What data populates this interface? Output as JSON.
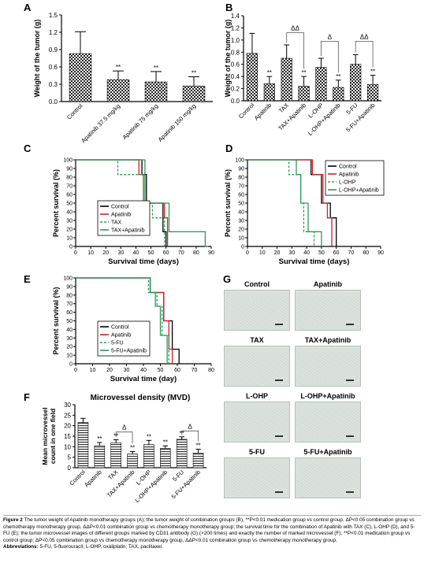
{
  "panels": {
    "A": {
      "letter": "A",
      "ylabel": "Weight of the tumor (g)",
      "yticks": [
        "0.0",
        "0.3",
        "0.6",
        "0.9",
        "1.2",
        "1.5"
      ],
      "categories": [
        "Control",
        "Apatinib 37.5 mg/kg",
        "Apatinib 75 mg/kg",
        "Apatinib 150 mg/kg"
      ],
      "annotations": [
        "",
        "**",
        "**",
        "**"
      ]
    },
    "B": {
      "letter": "B",
      "ylabel": "Weight of the tumor (g)",
      "yticks": [
        "0.0",
        "0.2",
        "0.4",
        "0.6",
        "0.8",
        "1.0",
        "1.2",
        "1.4"
      ],
      "categories": [
        "Control",
        "Apatinib",
        "TAX",
        "TAX+Apatinib",
        "L-OHP",
        "L-OHP+Apatinib",
        "5-FU",
        "5-FU+Apatinib"
      ],
      "annotations": [
        "",
        "**",
        "",
        "**",
        "",
        "**",
        "",
        "**"
      ],
      "brackets": [
        "ΔΔ",
        "Δ",
        "ΔΔ"
      ]
    },
    "C": {
      "letter": "C",
      "ylabel": "Percent survival (%)",
      "xlabel": "Survival time (days)",
      "yticks": [
        "0",
        "10",
        "20",
        "30",
        "40",
        "50",
        "60",
        "70",
        "80",
        "90",
        "100"
      ],
      "xticks": [
        "0",
        "10",
        "20",
        "30",
        "40",
        "50",
        "60",
        "70",
        "80",
        "90"
      ],
      "legend": [
        "Control",
        "Apatinib",
        "TAX",
        "TAX+Apatinib"
      ]
    },
    "D": {
      "letter": "D",
      "ylabel": "Percent survival (%)",
      "xlabel": "Survival time (days)",
      "yticks": [
        "0",
        "10",
        "20",
        "30",
        "40",
        "50",
        "60",
        "70",
        "80",
        "90",
        "100"
      ],
      "xticks": [
        "0",
        "10",
        "20",
        "30",
        "40",
        "50",
        "60",
        "70",
        "80",
        "90"
      ],
      "legend": [
        "Control",
        "Apatinib",
        "L-OHP",
        "L-OHP+Apatinib"
      ]
    },
    "E": {
      "letter": "E",
      "ylabel": "Percent survival (%)",
      "xlabel": "Survival time (day)",
      "yticks": [
        "0",
        "10",
        "20",
        "30",
        "40",
        "50",
        "60",
        "70",
        "80",
        "90",
        "100"
      ],
      "xticks": [
        "0",
        "10",
        "20",
        "30",
        "40",
        "50",
        "60",
        "70",
        "80"
      ],
      "legend": [
        "Control",
        "Apatinib",
        "5-FU",
        "5-FU+Apatinib"
      ]
    },
    "F": {
      "letter": "F",
      "title": "Microvessel density (MVD)",
      "ylabel": "Mean microvessel count in one field",
      "yticks": [
        "0",
        "5",
        "10",
        "15",
        "20",
        "25",
        "30"
      ],
      "categories": [
        "Control",
        "Apatinib",
        "TAX",
        "TAX+Apatinib",
        "L-OHP",
        "L-OHP+Apatinib",
        "5-FU",
        "5-FU+Apatinib"
      ],
      "annotations": [
        "",
        "**",
        "**",
        "**",
        "**",
        "**",
        "**",
        "**"
      ],
      "brackets": [
        "Δ",
        "Δ"
      ]
    },
    "G": {
      "letter": "G",
      "titles": [
        "Control",
        "Apatinib",
        "TAX",
        "TAX+Apatinib",
        "L-OHP",
        "L-OHP+Apatinib",
        "5-FU",
        "5-FU+Apatinib"
      ]
    }
  },
  "colors": {
    "control": "#000000",
    "apatinib": "#d0202a",
    "chemo": "#2e9a5a",
    "combo": "#2e9a5a",
    "bar_pattern": "#333333"
  },
  "chart_data": [
    {
      "type": "bar",
      "id": "A",
      "categories": [
        "Control",
        "Apatinib 37.5 mg/kg",
        "Apatinib 75 mg/kg",
        "Apatinib 150 mg/kg"
      ],
      "values": [
        0.83,
        0.38,
        0.34,
        0.27
      ],
      "errors": [
        0.38,
        0.15,
        0.18,
        0.16
      ],
      "ylim": [
        0,
        1.5
      ],
      "ylabel": "Weight of the tumor (g)"
    },
    {
      "type": "bar",
      "id": "B",
      "categories": [
        "Control",
        "Apatinib",
        "TAX",
        "TAX+Apatinib",
        "L-OHP",
        "L-OHP+Apatinib",
        "5-FU",
        "5-FU+Apatinib"
      ],
      "values": [
        0.78,
        0.28,
        0.7,
        0.24,
        0.55,
        0.22,
        0.6,
        0.27
      ],
      "errors": [
        0.33,
        0.12,
        0.22,
        0.16,
        0.15,
        0.12,
        0.16,
        0.15
      ],
      "ylim": [
        0,
        1.4
      ],
      "ylabel": "Weight of the tumor (g)"
    },
    {
      "type": "line",
      "id": "C",
      "xlim": [
        0,
        90
      ],
      "ylim": [
        0,
        100
      ],
      "xlabel": "Survival time (days)",
      "ylabel": "Percent survival (%)",
      "series": [
        {
          "name": "Control",
          "style": "solid",
          "color": "#000000",
          "points": [
            [
              0,
              100
            ],
            [
              44,
              100
            ],
            [
              44,
              83
            ],
            [
              47,
              83
            ],
            [
              47,
              50
            ],
            [
              58,
              50
            ],
            [
              58,
              17
            ],
            [
              60,
              17
            ],
            [
              60,
              0
            ]
          ]
        },
        {
          "name": "Apatinib",
          "style": "solid",
          "color": "#d0202a",
          "points": [
            [
              0,
              100
            ],
            [
              42,
              100
            ],
            [
              42,
              83
            ],
            [
              45,
              83
            ],
            [
              45,
              50
            ],
            [
              59,
              50
            ],
            [
              59,
              33
            ],
            [
              61,
              33
            ],
            [
              61,
              0
            ]
          ]
        },
        {
          "name": "TAX",
          "style": "dashed",
          "color": "#2e9a5a",
          "points": [
            [
              0,
              100
            ],
            [
              28,
              100
            ],
            [
              28,
              83
            ],
            [
              45,
              83
            ],
            [
              45,
              50
            ],
            [
              51,
              50
            ],
            [
              51,
              33
            ],
            [
              59,
              33
            ],
            [
              59,
              0
            ]
          ]
        },
        {
          "name": "TAX+Apatinib",
          "style": "solid",
          "color": "#2e9a5a",
          "points": [
            [
              0,
              100
            ],
            [
              46,
              100
            ],
            [
              46,
              50
            ],
            [
              62,
              50
            ],
            [
              62,
              17
            ],
            [
              86,
              17
            ],
            [
              86,
              0
            ],
            [
              88,
              0
            ]
          ]
        }
      ]
    },
    {
      "type": "line",
      "id": "D",
      "xlim": [
        0,
        90
      ],
      "ylim": [
        0,
        100
      ],
      "xlabel": "Survival time (days)",
      "ylabel": "Percent survival (%)",
      "series": [
        {
          "name": "Control",
          "style": "solid",
          "color": "#000000",
          "points": [
            [
              0,
              100
            ],
            [
              43,
              100
            ],
            [
              43,
              83
            ],
            [
              50,
              83
            ],
            [
              50,
              50
            ],
            [
              56,
              50
            ],
            [
              56,
              33
            ],
            [
              60,
              33
            ],
            [
              60,
              0
            ]
          ]
        },
        {
          "name": "Apatinib",
          "style": "solid",
          "color": "#d0202a",
          "points": [
            [
              0,
              100
            ],
            [
              44,
              100
            ],
            [
              44,
              83
            ],
            [
              51,
              83
            ],
            [
              51,
              50
            ],
            [
              54,
              50
            ],
            [
              54,
              33
            ],
            [
              57,
              33
            ],
            [
              57,
              0
            ]
          ]
        },
        {
          "name": "L-OHP",
          "style": "dashed",
          "color": "#2e9a5a",
          "points": [
            [
              0,
              100
            ],
            [
              28,
              100
            ],
            [
              28,
              83
            ],
            [
              36,
              83
            ],
            [
              36,
              50
            ],
            [
              38,
              50
            ],
            [
              38,
              17
            ],
            [
              45,
              17
            ],
            [
              45,
              0
            ]
          ]
        },
        {
          "name": "L-OHP+Apatinib",
          "style": "solid",
          "color": "#2e9a5a",
          "points": [
            [
              0,
              100
            ],
            [
              33,
              100
            ],
            [
              33,
              83
            ],
            [
              36,
              83
            ],
            [
              36,
              50
            ],
            [
              41,
              50
            ],
            [
              41,
              17
            ],
            [
              50,
              17
            ],
            [
              50,
              0
            ]
          ]
        }
      ]
    },
    {
      "type": "line",
      "id": "E",
      "xlim": [
        0,
        80
      ],
      "ylim": [
        0,
        100
      ],
      "xlabel": "Survival time (day)",
      "ylabel": "Percent survival (%)",
      "series": [
        {
          "name": "Control",
          "style": "solid",
          "color": "#000000",
          "points": [
            [
              0,
              100
            ],
            [
              44,
              100
            ],
            [
              44,
              83
            ],
            [
              52,
              83
            ],
            [
              52,
              50
            ],
            [
              57,
              50
            ],
            [
              57,
              17
            ],
            [
              61,
              17
            ],
            [
              61,
              0
            ]
          ]
        },
        {
          "name": "Apatinib",
          "style": "solid",
          "color": "#d0202a",
          "points": [
            [
              0,
              100
            ],
            [
              44,
              100
            ],
            [
              44,
              83
            ],
            [
              52,
              83
            ],
            [
              52,
              50
            ],
            [
              55,
              50
            ],
            [
              55,
              17
            ],
            [
              57,
              17
            ],
            [
              57,
              0
            ]
          ]
        },
        {
          "name": "5-FU",
          "style": "dashed",
          "color": "#2e9a5a",
          "points": [
            [
              0,
              100
            ],
            [
              43,
              100
            ],
            [
              43,
              83
            ],
            [
              48,
              83
            ],
            [
              48,
              67
            ],
            [
              51,
              67
            ],
            [
              51,
              33
            ],
            [
              55,
              33
            ],
            [
              55,
              0
            ]
          ]
        },
        {
          "name": "5-FU+Apatinib",
          "style": "solid",
          "color": "#2e9a5a",
          "points": [
            [
              0,
              100
            ],
            [
              44,
              100
            ],
            [
              44,
              83
            ],
            [
              47,
              83
            ],
            [
              47,
              67
            ],
            [
              50,
              67
            ],
            [
              50,
              33
            ],
            [
              54,
              33
            ],
            [
              54,
              0
            ]
          ]
        }
      ]
    },
    {
      "type": "bar",
      "id": "F",
      "categories": [
        "Control",
        "Apatinib",
        "TAX",
        "TAX+Apatinib",
        "L-OHP",
        "L-OHP+Apatinib",
        "5-FU",
        "5-FU+Apatinib"
      ],
      "values": [
        21.5,
        10.5,
        11.8,
        6.5,
        11.0,
        9.2,
        13.5,
        7.0
      ],
      "errors": [
        2.0,
        1.5,
        1.5,
        1.2,
        2.0,
        1.2,
        1.2,
        1.8
      ],
      "ylim": [
        0,
        30
      ],
      "ylabel": "Mean microvessel count in one field",
      "title": "Microvessel density (MVD)"
    }
  ],
  "caption": {
    "lead": "Figure 2",
    "text": " The tumor weight of Apatinib monotherapy groups (A); the tumor weight of combination groups (B), **P<0.01 medication group vs control group, ΔP<0.05 combination group vs chemotherapy monotherapy group, ΔΔP<0.01 combination group vs chemotherapy monotherapy group; the survival time for the combination of Apatinib with TAX (C), L-OHP (D), and 5-FU (E); the tumor microvessel images of different groups marked by CD31 antibody (G) (×200 times) and exactly the number of marked microvessel (F); **P<0.01 medication group vs control group; ΔP<0.05 combination group vs chemotherapy monotherapy group, ΔΔP<0.01 combination group vs chemotherapy monotherapy group.",
    "abbr_label": "Abbreviations:",
    "abbr_text": " 5-FU, 5-fluorouracil; L-OHP, oxaliplatin; TAX, paclitaxel."
  }
}
